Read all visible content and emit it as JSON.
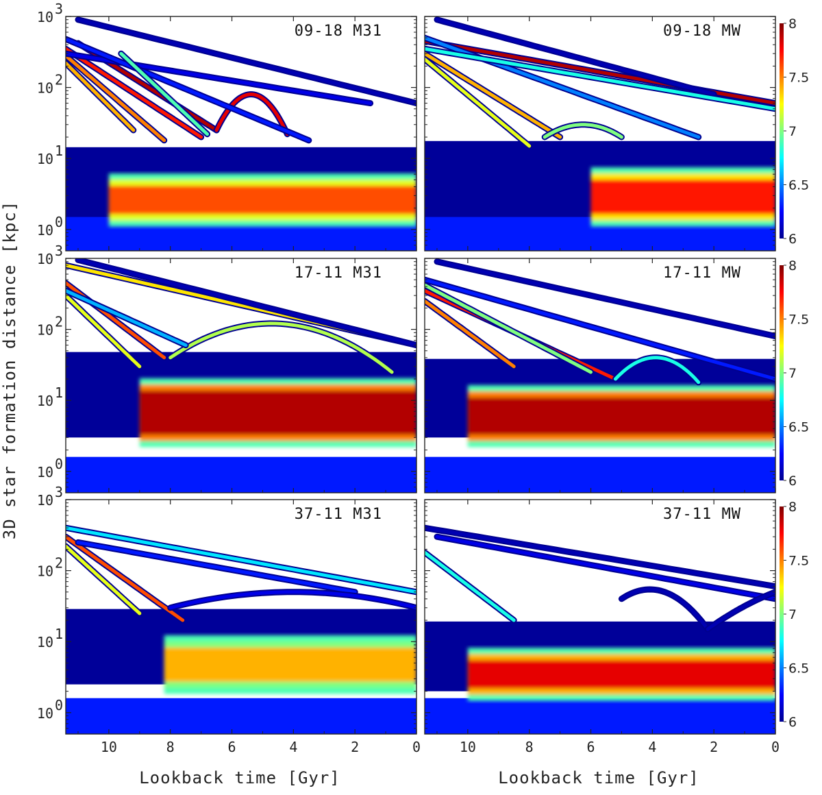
{
  "chart_data": {
    "type": "heatmap",
    "xlabel": "Lookback time [Gyr]",
    "ylabel": "3D star formation distance [kpc]",
    "x_ticks": [
      "10",
      "8",
      "6",
      "4",
      "2",
      "0"
    ],
    "x_tick_values": [
      10,
      8,
      6,
      4,
      2,
      0
    ],
    "xlim": [
      11.4,
      0
    ],
    "y_scale": "log",
    "ylim": [
      0.5,
      1000
    ],
    "y_ticks": [
      {
        "base": "10",
        "exp": "3",
        "value": 1000
      },
      {
        "base": "10",
        "exp": "2",
        "value": 100
      },
      {
        "base": "10",
        "exp": "1",
        "value": 10
      },
      {
        "base": "10",
        "exp": "0",
        "value": 1
      }
    ],
    "colorbar": {
      "range": [
        6,
        8
      ],
      "ticks": [
        "8",
        "7.5",
        "7",
        "6.5",
        "6"
      ],
      "tick_values": [
        8,
        7.5,
        7,
        6.5,
        6
      ],
      "colormap": "jet"
    },
    "panels": [
      {
        "title": "09-18 M31",
        "disk_y": [
          1.5,
          4.5
        ],
        "disk_peak": 7.6,
        "disk_start": 10.0,
        "arcs": [
          {
            "t0": 11.4,
            "t1": 7.0,
            "d0": 350,
            "d1": 20,
            "v": 7.7
          },
          {
            "t0": 11.4,
            "t1": 9.2,
            "d0": 220,
            "d1": 25,
            "v": 7.4
          },
          {
            "t0": 11.4,
            "t1": 8.2,
            "d0": 280,
            "d1": 18,
            "v": 7.5
          },
          {
            "t0": 11.0,
            "t1": 6.5,
            "d0": 420,
            "d1": 25,
            "v": 7.9
          },
          {
            "t0": 6.5,
            "t1": 4.2,
            "d0": 25,
            "d1": 22,
            "v": 7.8,
            "peak": 80
          },
          {
            "t0": 11.4,
            "t1": 1.5,
            "d0": 300,
            "d1": 60,
            "v": 6.2
          },
          {
            "t0": 11.0,
            "t1": 0.0,
            "d0": 900,
            "d1": 60,
            "v": 6.1
          },
          {
            "t0": 11.4,
            "t1": 3.5,
            "d0": 480,
            "d1": 18,
            "v": 6.3
          },
          {
            "t0": 9.6,
            "t1": 6.8,
            "d0": 300,
            "d1": 22,
            "v": 6.9
          }
        ]
      },
      {
        "title": "09-18 MW",
        "disk_y": [
          1.5,
          5.5
        ],
        "disk_peak": 7.7,
        "disk_start": 6.0,
        "arcs": [
          {
            "t0": 11.4,
            "t1": 0.0,
            "d0": 450,
            "d1": 60,
            "v": 7.9
          },
          {
            "t0": 11.4,
            "t1": 7.0,
            "d0": 300,
            "d1": 20,
            "v": 7.4
          },
          {
            "t0": 11.4,
            "t1": 8.0,
            "d0": 250,
            "d1": 15,
            "v": 7.2
          },
          {
            "t0": 7.5,
            "t1": 5.0,
            "d0": 20,
            "d1": 20,
            "v": 7.0,
            "peak": 30
          },
          {
            "t0": 11.0,
            "t1": 2.0,
            "d0": 900,
            "d1": 80,
            "v": 6.1
          },
          {
            "t0": 11.4,
            "t1": 2.5,
            "d0": 500,
            "d1": 20,
            "v": 6.5
          },
          {
            "t0": 11.4,
            "t1": 0.0,
            "d0": 350,
            "d1": 50,
            "v": 6.8
          }
        ]
      },
      {
        "title": "17-11 M31",
        "disk_y": [
          3.0,
          15.0
        ],
        "disk_peak": 7.9,
        "disk_start": 9.0,
        "arcs": [
          {
            "t0": 11.4,
            "t1": 8.2,
            "d0": 450,
            "d1": 40,
            "v": 7.6
          },
          {
            "t0": 11.4,
            "t1": 9.0,
            "d0": 300,
            "d1": 30,
            "v": 7.2
          },
          {
            "t0": 8.0,
            "t1": 0.8,
            "d0": 40,
            "d1": 25,
            "v": 7.1,
            "peak": 120
          },
          {
            "t0": 11.4,
            "t1": 0.0,
            "d0": 800,
            "d1": 60,
            "v": 7.3
          },
          {
            "t0": 11.0,
            "t1": 0.0,
            "d0": 950,
            "d1": 60,
            "v": 6.1
          },
          {
            "t0": 11.4,
            "t1": 7.5,
            "d0": 350,
            "d1": 60,
            "v": 6.6
          }
        ]
      },
      {
        "title": "17-11 MW",
        "disk_y": [
          3.0,
          12.0
        ],
        "disk_peak": 7.9,
        "disk_start": 10.0,
        "arcs": [
          {
            "t0": 11.4,
            "t1": 5.2,
            "d0": 350,
            "d1": 20,
            "v": 7.7
          },
          {
            "t0": 11.4,
            "t1": 8.5,
            "d0": 250,
            "d1": 30,
            "v": 7.5
          },
          {
            "t0": 5.2,
            "t1": 2.5,
            "d0": 20,
            "d1": 18,
            "v": 6.8,
            "peak": 40
          },
          {
            "t0": 11.0,
            "t1": 0.0,
            "d0": 900,
            "d1": 80,
            "v": 6.1
          },
          {
            "t0": 11.4,
            "t1": 0.0,
            "d0": 500,
            "d1": 20,
            "v": 6.3
          },
          {
            "t0": 11.4,
            "t1": 6.0,
            "d0": 420,
            "d1": 25,
            "v": 7.0
          }
        ]
      },
      {
        "title": "37-11 M31",
        "disk_y": [
          2.5,
          9.0
        ],
        "disk_peak": 7.4,
        "disk_start": 8.2,
        "arcs": [
          {
            "t0": 11.4,
            "t1": 7.6,
            "d0": 300,
            "d1": 20,
            "v": 7.6
          },
          {
            "t0": 11.4,
            "t1": 9.0,
            "d0": 220,
            "d1": 25,
            "v": 7.2
          },
          {
            "t0": 11.4,
            "t1": 0.0,
            "d0": 400,
            "d1": 50,
            "v": 6.7
          },
          {
            "t0": 11.0,
            "t1": 2.0,
            "d0": 250,
            "d1": 50,
            "v": 6.3
          },
          {
            "t0": 8.0,
            "t1": 0.0,
            "d0": 30,
            "d1": 30,
            "v": 6.2,
            "peak": 50
          }
        ]
      },
      {
        "title": "37-11 MW",
        "disk_y": [
          2.0,
          6.0
        ],
        "disk_peak": 7.8,
        "disk_start": 10.0,
        "arcs": [
          {
            "t0": 11.4,
            "t1": 0.0,
            "d0": 400,
            "d1": 60,
            "v": 6.1
          },
          {
            "t0": 11.4,
            "t1": 8.5,
            "d0": 180,
            "d1": 20,
            "v": 6.8
          },
          {
            "t0": 11.0,
            "t1": 0.0,
            "d0": 300,
            "d1": 40,
            "v": 6.2
          },
          {
            "t0": 5.0,
            "t1": 2.2,
            "d0": 40,
            "d1": 15,
            "v": 6.1,
            "peak": 50
          },
          {
            "t0": 2.2,
            "t1": 0.0,
            "d0": 15,
            "d1": 50,
            "v": 6.1,
            "peak": 30
          }
        ]
      }
    ]
  }
}
